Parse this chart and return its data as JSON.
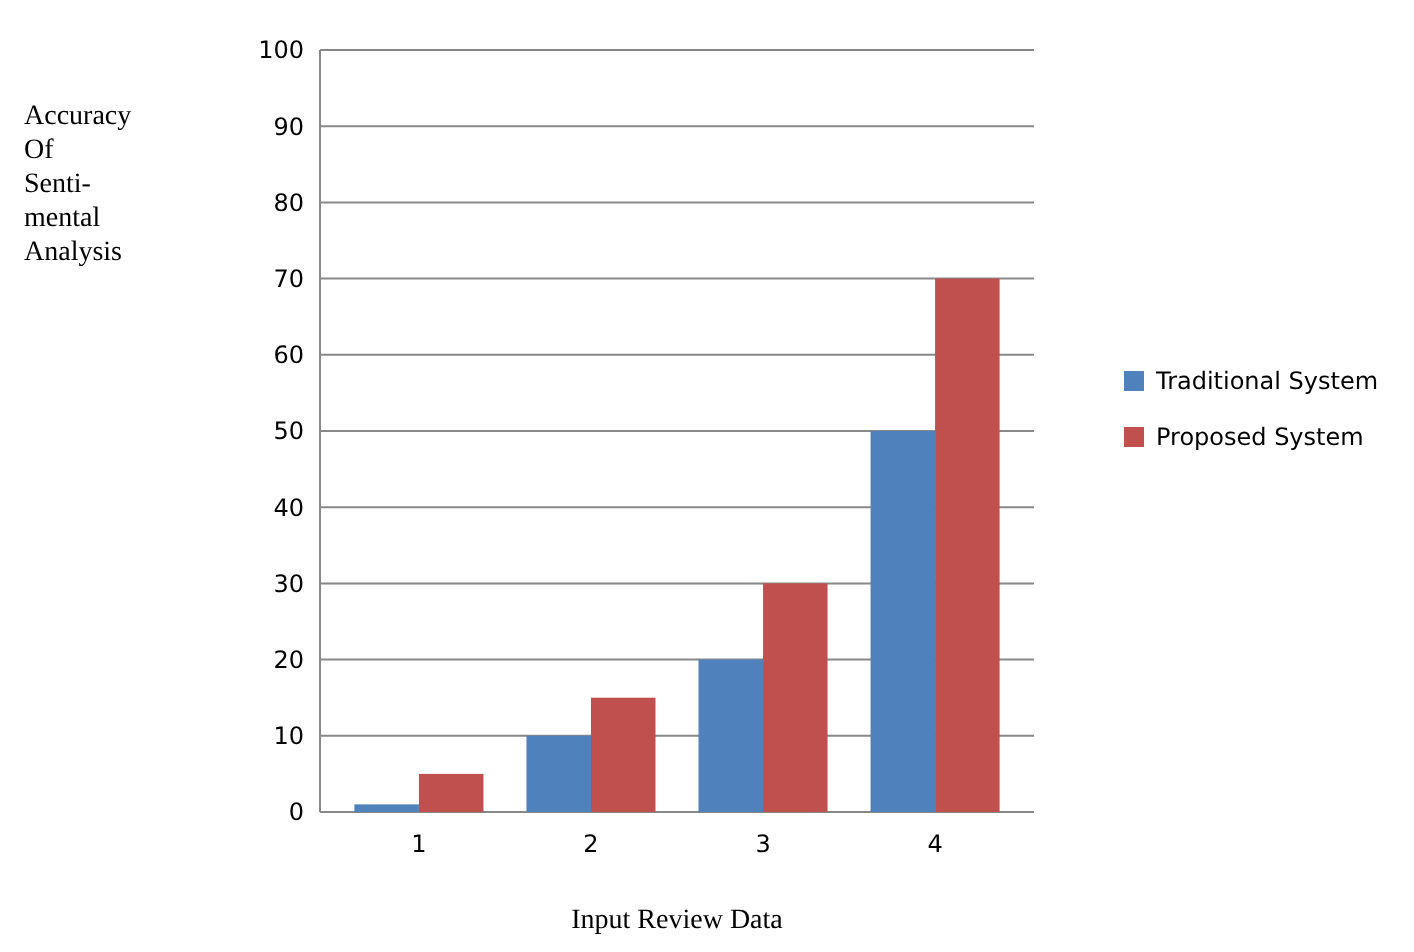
{
  "chart_data": {
    "type": "bar",
    "xlabel": "Input Review Data",
    "ylabel": "Accuracy\nOf\nSenti-\nmental\nAnalysis",
    "categories": [
      "1",
      "2",
      "3",
      "4"
    ],
    "series": [
      {
        "name": "Traditional System",
        "color": "#4f81bd",
        "values": [
          1,
          10,
          20,
          50
        ]
      },
      {
        "name": "Proposed System",
        "color": "#c0504d",
        "values": [
          5,
          15,
          30,
          70
        ]
      }
    ],
    "ylim": [
      0,
      100
    ],
    "yticks": [
      0,
      10,
      20,
      30,
      40,
      50,
      60,
      70,
      80,
      90,
      100
    ],
    "grid": "y",
    "legend": "right"
  }
}
